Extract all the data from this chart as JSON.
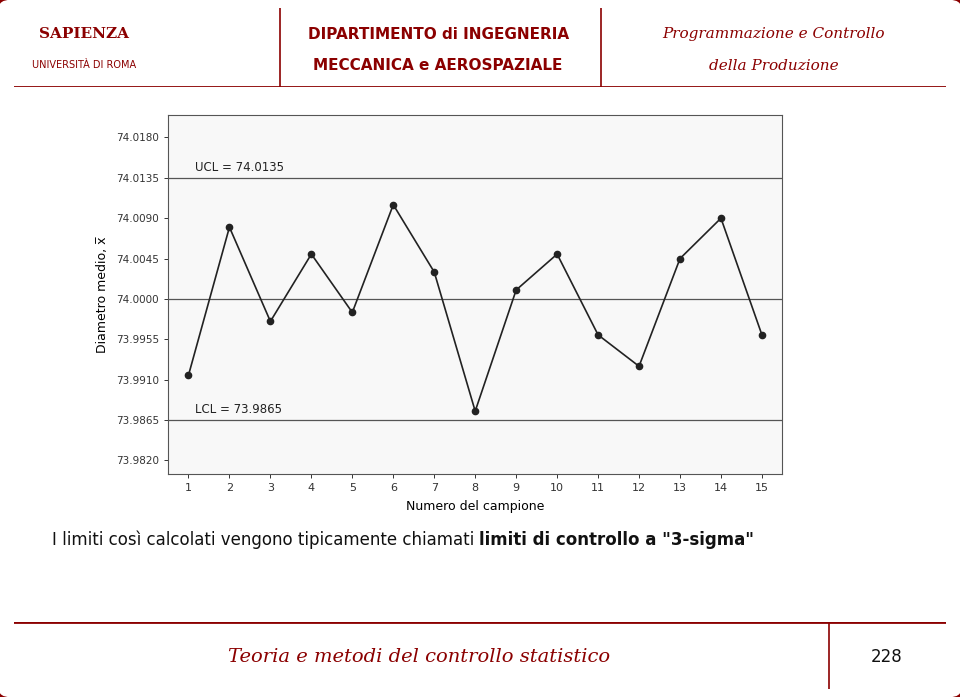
{
  "x_data": [
    1,
    2,
    3,
    4,
    5,
    6,
    7,
    8,
    9,
    10,
    11,
    12,
    13,
    14,
    15
  ],
  "y_data": [
    73.9915,
    74.008,
    73.9975,
    74.005,
    73.9985,
    74.0105,
    74.003,
    73.9875,
    74.001,
    74.005,
    73.996,
    73.9925,
    74.0045,
    74.009,
    73.996
  ],
  "UCL": 74.0135,
  "LCL": 73.9865,
  "CL": 74.0,
  "ylim_min": 73.9805,
  "ylim_max": 74.0205,
  "yticks": [
    73.982,
    73.9865,
    73.991,
    73.9955,
    74.0,
    74.0045,
    74.009,
    74.0135,
    74.018
  ],
  "xlabel": "Numero del campione",
  "ylabel": "Diametro medio, x̅",
  "line_color": "#222222",
  "marker_color": "#222222",
  "control_line_color": "#555555",
  "slide_bg": "#f0f0f0",
  "chart_bg": "#f8f8f8",
  "border_color": "#8B0000",
  "header_text_color": "#8B0000",
  "footer_text": "Teoria e metodi del controllo statistico",
  "page_number": "228",
  "dept_line1": "DIPARTIMENTO di INGEGNERIA",
  "dept_line2": "MECCANICA e AEROSPAZIALE",
  "course_line1": "Programmazione e Controllo",
  "course_line2": "della Produzione",
  "body_text_normal": "I limiti così calcolati vengono tipicamente chiamati ",
  "body_text_bold": "limiti di controllo a \"3-sigma\"",
  "ucl_label": "UCL = 74.0135",
  "lcl_label": "LCL = 73.9865",
  "sapienza_line1": "SAPIENZA",
  "sapienza_line2": "UNIVERSITÀ DI ROMA"
}
